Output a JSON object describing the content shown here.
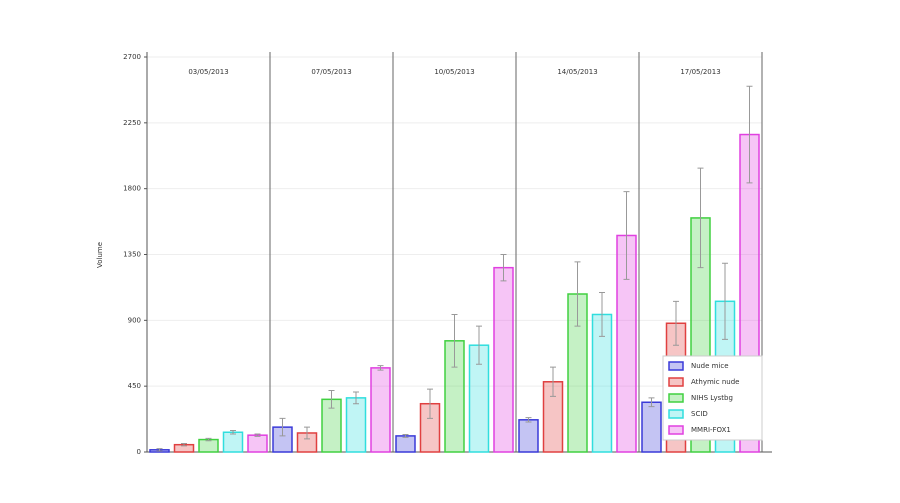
{
  "chart_data": {
    "type": "bar",
    "y_label": "Volume",
    "categories": [
      "03/05/2013",
      "07/05/2013",
      "10/05/2013",
      "14/05/2013",
      "17/05/2013"
    ],
    "series": [
      {
        "name": "Nude mice",
        "color": "#3a3ad8",
        "values": [
          15,
          170,
          110,
          220,
          340
        ],
        "errors": [
          8,
          60,
          10,
          15,
          30
        ]
      },
      {
        "name": "Athymic nude",
        "color": "#e04040",
        "values": [
          50,
          130,
          330,
          480,
          880
        ],
        "errors": [
          8,
          40,
          100,
          100,
          150
        ]
      },
      {
        "name": "NIHS Lystbg",
        "color": "#40d040",
        "values": [
          85,
          360,
          760,
          1080,
          1600
        ],
        "errors": [
          8,
          60,
          180,
          220,
          340
        ]
      },
      {
        "name": "SCID",
        "color": "#30dede",
        "values": [
          135,
          370,
          730,
          940,
          1030
        ],
        "errors": [
          12,
          40,
          130,
          150,
          260
        ]
      },
      {
        "name": "MMRI-FOX1",
        "color": "#e040e0",
        "values": [
          115,
          575,
          1260,
          1480,
          2170
        ],
        "errors": [
          8,
          15,
          90,
          300,
          330
        ]
      }
    ],
    "ylim": [
      0,
      2700
    ],
    "yticks": [
      0,
      450,
      900,
      1350,
      1800,
      2250,
      2700
    ],
    "grid": true,
    "legend": "lower right"
  }
}
